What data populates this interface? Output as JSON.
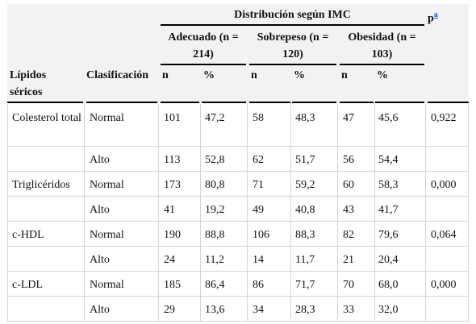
{
  "header": {
    "group_title": "Distribución según IMC",
    "p_label": "p",
    "p_footnote_link": "a",
    "lipidos": "Lípidos séricos",
    "clasificacion": "Clasificación",
    "groups": [
      {
        "label_line1": "Adecuado (n =",
        "label_line2": "214)",
        "n_label": "n",
        "pct_label": "%"
      },
      {
        "label_line1": "Sobrepeso (n =",
        "label_line2": "120)",
        "n_label": "n",
        "pct_label": "%"
      },
      {
        "label_line1": "Obesidad (n =",
        "label_line2": "103)",
        "n_label": "n",
        "pct_label": "%"
      }
    ]
  },
  "rows": [
    {
      "lipid": "Colesterol total",
      "clas": "Normal",
      "n1": "101",
      "p1": "47,2",
      "n2": "58",
      "p2": "48,3",
      "n3": "47",
      "p3": "45,6",
      "p": "0,922"
    },
    {
      "lipid": "",
      "clas": "Alto",
      "n1": "113",
      "p1": "52,8",
      "n2": "62",
      "p2": "51,7",
      "n3": "56",
      "p3": "54,4",
      "p": ""
    },
    {
      "lipid": "Triglicéridos",
      "clas": "Normal",
      "n1": "173",
      "p1": "80,8",
      "n2": "71",
      "p2": "59,2",
      "n3": "60",
      "p3": "58,3",
      "p": "0,000"
    },
    {
      "lipid": "",
      "clas": "Alto",
      "n1": "41",
      "p1": "19,2",
      "n2": "49",
      "p2": "40,8",
      "n3": "43",
      "p3": "41,7",
      "p": ""
    },
    {
      "lipid": "c-HDL",
      "clas": "Normal",
      "n1": "190",
      "p1": "88,8",
      "n2": "106",
      "p2": "88,3",
      "n3": "82",
      "p3": "79,6",
      "p": "0,064"
    },
    {
      "lipid": "",
      "clas": "Alto",
      "n1": "24",
      "p1": "11,2",
      "n2": "14",
      "p2": "11,7",
      "n3": "21",
      "p3": "20,4",
      "p": ""
    },
    {
      "lipid": "c-LDL",
      "clas": "Normal",
      "n1": "185",
      "p1": "86,4",
      "n2": "86",
      "p2": "71,7",
      "n3": "70",
      "p3": "68,0",
      "p": "0,000"
    },
    {
      "lipid": "",
      "clas": "Alto",
      "n1": "29",
      "p1": "13,6",
      "n2": "34",
      "p2": "28,3",
      "n3": "33",
      "p3": "32,0",
      "p": ""
    }
  ]
}
